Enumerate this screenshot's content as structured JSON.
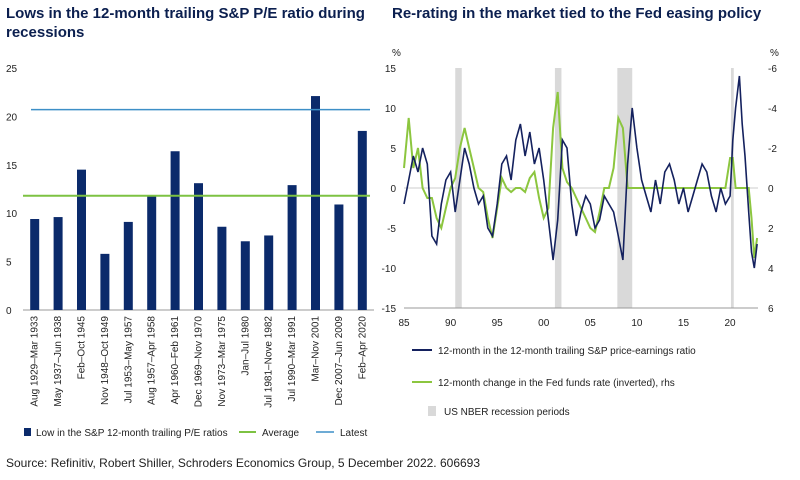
{
  "colors": {
    "bar": "#0b2a6b",
    "average": "#7dc242",
    "latest": "#3d8fc7",
    "spx_pe": "#14215e",
    "fed": "#8cc63f",
    "recession": "#d9d9d9",
    "title": "#0b1f4f"
  },
  "source": "Source: Refinitiv, Robert Shiller, Schroders Economics Group, 5 December 2022. 606693",
  "chart_data": [
    {
      "type": "bar",
      "title": "Lows in the 12-month trailing S&P P/E ratio during recessions",
      "categories": [
        "Aug 1929–Mar 1933",
        "May 1937–Jun 1938",
        "Feb–Oct 1945",
        "Nov 1948–Oct 1949",
        "Jul 1953–May 1957",
        "Aug 1957–Apr 1958",
        "Apr 1960–Feb 1961",
        "Dec 1969–Nov 1970",
        "Nov 1973–Mar 1975",
        "Jan–Jul 1980",
        "Jul 1981–Nove 1982",
        "Jul 1990–Mar 1991",
        "Mar–Nov 2001",
        "Dec 2007–Jun 2009",
        "Feb–Apr 2020"
      ],
      "values": [
        9.4,
        9.6,
        14.5,
        5.8,
        9.1,
        11.8,
        16.4,
        13.1,
        8.6,
        7.1,
        7.7,
        12.9,
        22.1,
        10.9,
        18.5
      ],
      "average": 11.8,
      "latest": 20.7,
      "ylim": [
        0,
        25
      ],
      "yticks": [
        0,
        5,
        10,
        15,
        20,
        25
      ],
      "legend": [
        "Low in the S&P 12-month trailing P/E ratios",
        "Average",
        "Latest"
      ],
      "legend_position": "bottom"
    },
    {
      "type": "line",
      "title": "Re-rating in the market tied to the Fed easing policy",
      "y_left_unit": "%",
      "y_right_unit": "%",
      "ylim_left": [
        -15,
        15
      ],
      "yticks_left": [
        15,
        10,
        5,
        0,
        -5,
        -10,
        -15
      ],
      "ylim_right_inverted": [
        -6,
        6
      ],
      "yticks_right": [
        -6,
        -4,
        -2,
        0,
        2,
        4,
        6
      ],
      "xlim": [
        1985,
        2023
      ],
      "xticks": [
        1985,
        1990,
        1995,
        2000,
        2005,
        2010,
        2015,
        2020
      ],
      "xtick_labels": [
        "85",
        "90",
        "95",
        "00",
        "05",
        "10",
        "15",
        "20"
      ],
      "recessions": [
        [
          1990.5,
          1991.2
        ],
        [
          2001.2,
          2001.9
        ],
        [
          2007.9,
          2009.5
        ],
        [
          2020.1,
          2020.4
        ]
      ],
      "series": [
        {
          "name": "12-month in the 12-month trailing S&P price-earnings ratio",
          "axis": "left",
          "x": [
            1985,
            1985.5,
            1986,
            1986.5,
            1987,
            1987.5,
            1988,
            1988.5,
            1989,
            1989.5,
            1990,
            1990.5,
            1991,
            1991.5,
            1992,
            1992.5,
            1993,
            1993.5,
            1994,
            1994.5,
            1995,
            1995.5,
            1996,
            1996.5,
            1997,
            1997.5,
            1998,
            1998.5,
            1999,
            1999.5,
            2000,
            2000.5,
            2001,
            2001.5,
            2002,
            2002.5,
            2003,
            2003.5,
            2004,
            2004.5,
            2005,
            2005.5,
            2006,
            2006.5,
            2007,
            2007.5,
            2008,
            2008.5,
            2009,
            2009.5,
            2010,
            2010.5,
            2011,
            2011.5,
            2012,
            2012.5,
            2013,
            2013.5,
            2014,
            2014.5,
            2015,
            2015.5,
            2016,
            2016.5,
            2017,
            2017.5,
            2018,
            2018.5,
            2019,
            2019.5,
            2020,
            2020.3,
            2020.6,
            2021,
            2021.3,
            2021.6,
            2022,
            2022.3,
            2022.6,
            2022.9
          ],
          "values": [
            -2,
            1,
            4,
            2,
            5,
            3,
            -6,
            -7,
            -2,
            1,
            2,
            -3,
            1,
            5,
            3,
            0,
            -2,
            -1,
            -5,
            -6,
            -2,
            3,
            4,
            1,
            6,
            8,
            4,
            7,
            3,
            5,
            1,
            -4,
            -9,
            -4,
            6,
            5,
            -2,
            -6,
            -3,
            -1,
            -2,
            -5,
            -4,
            -1,
            -2,
            -3,
            -6,
            -9,
            3,
            10,
            5,
            1,
            -1,
            -3,
            1,
            -2,
            2,
            3,
            1,
            -2,
            0,
            -3,
            -1,
            1,
            3,
            2,
            -1,
            -3,
            0,
            -2,
            -1,
            6,
            10,
            14,
            8,
            4,
            -3,
            -8,
            -10,
            -7
          ]
        },
        {
          "name": "12-month change in the Fed funds rate (inverted), rhs",
          "axis": "right",
          "x": [
            1985,
            1985.5,
            1986,
            1986.5,
            1987,
            1987.5,
            1988,
            1988.5,
            1989,
            1989.5,
            1990,
            1990.5,
            1991,
            1991.5,
            1992,
            1992.5,
            1993,
            1993.5,
            1994,
            1994.5,
            1995,
            1995.5,
            1996,
            1996.5,
            1997,
            1997.5,
            1998,
            1998.5,
            1999,
            1999.5,
            2000,
            2000.5,
            2001,
            2001.5,
            2002,
            2002.5,
            2003,
            2003.5,
            2004,
            2004.5,
            2005,
            2005.5,
            2006,
            2006.5,
            2007,
            2007.5,
            2008,
            2008.5,
            2009,
            2009.5,
            2010,
            2012,
            2014,
            2015.5,
            2016,
            2017,
            2018,
            2018.5,
            2019,
            2019.5,
            2020,
            2020.3,
            2020.6,
            2021,
            2021.5,
            2022,
            2022.3,
            2022.6,
            2022.9
          ],
          "values": [
            -1,
            -3.5,
            -1,
            -2,
            0,
            0.5,
            0.5,
            1.5,
            2,
            1,
            0,
            -0.5,
            -2,
            -3,
            -2,
            -1,
            0,
            0.2,
            1.5,
            2.5,
            1,
            -0.5,
            0,
            0.2,
            0,
            0,
            0.2,
            -0.5,
            -0.8,
            0.5,
            1.5,
            1,
            -3,
            -4.8,
            -1,
            -0.3,
            0,
            0.5,
            1,
            1.5,
            2,
            2.2,
            1.2,
            0,
            0,
            -1,
            -3.5,
            -3,
            0,
            0,
            0,
            0,
            0,
            0,
            0,
            0,
            0,
            0,
            0,
            0,
            -1.5,
            -1.5,
            0,
            0,
            0,
            0,
            1.5,
            3.5,
            2.5
          ]
        }
      ],
      "legend": [
        "12-month in the 12-month trailing S&P price-earnings ratio",
        "12-month change in the Fed funds rate (inverted), rhs",
        "US NBER recession periods"
      ],
      "legend_position": "bottom"
    }
  ],
  "left_title": "Lows in the 12-month trailing S&P P/E ratio during recessions",
  "right_title": "Re-rating in the market tied to the Fed easing policy"
}
